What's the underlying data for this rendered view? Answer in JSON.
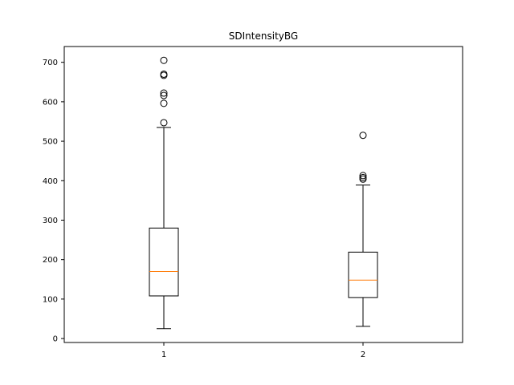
{
  "chart_data": {
    "type": "box",
    "title": "SDIntensityBG",
    "xlabel": "",
    "ylabel": "",
    "categories": [
      "1",
      "2"
    ],
    "ylim": [
      -10,
      740
    ],
    "yticks": [
      0,
      100,
      200,
      300,
      400,
      500,
      600,
      700
    ],
    "grid": false,
    "boxes": [
      {
        "label": "1",
        "whisker_low": 25,
        "q1": 108,
        "median": 170,
        "q3": 280,
        "whisker_high": 535,
        "outliers": [
          547,
          596,
          616,
          622,
          667,
          670,
          705
        ]
      },
      {
        "label": "2",
        "whisker_low": 31,
        "q1": 104,
        "median": 148,
        "q3": 219,
        "whisker_high": 389,
        "outliers": [
          404,
          408,
          413,
          515
        ]
      }
    ],
    "colors": {
      "box": "#000000",
      "median": "#ff7f0e",
      "outlier": "#000000"
    }
  }
}
